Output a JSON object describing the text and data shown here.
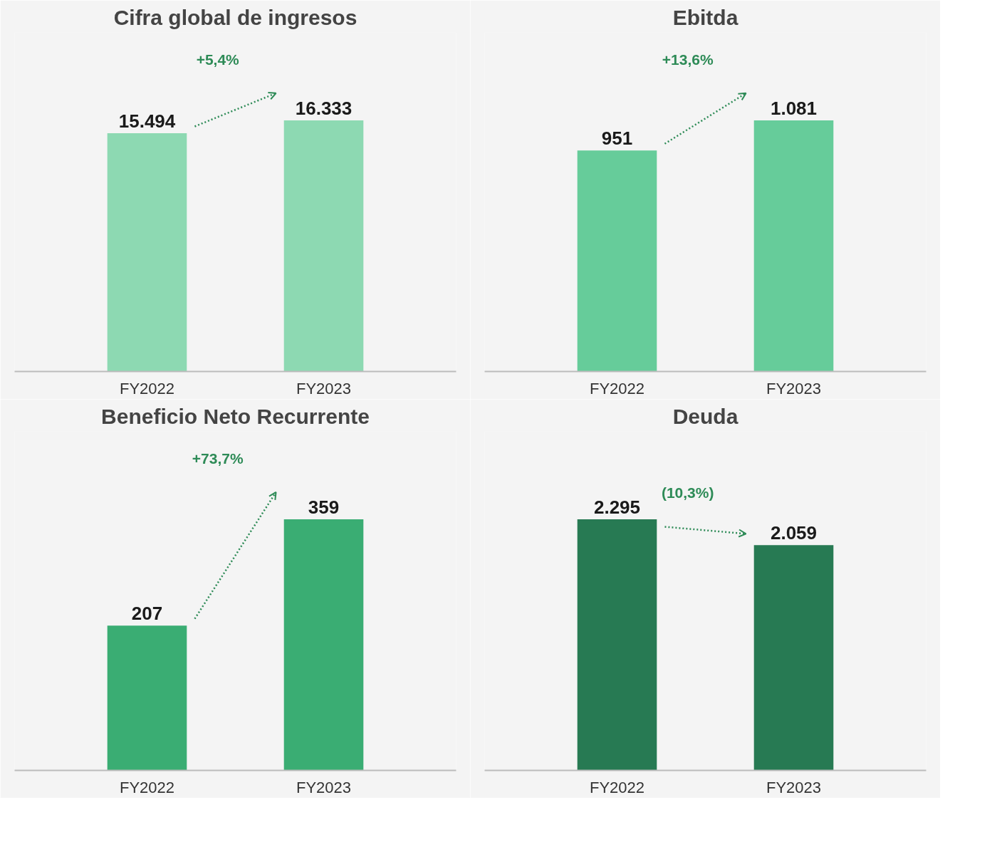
{
  "chart_data": [
    {
      "type": "bar",
      "title": "Cifra global de ingresos",
      "categories": [
        "FY2022",
        "FY2023"
      ],
      "values": [
        15494,
        16333
      ],
      "value_labels": [
        "15.494",
        "16.333"
      ],
      "color": "#8dd9b2",
      "annotations": [
        "+5,4%"
      ]
    },
    {
      "type": "bar",
      "title": "Ebitda",
      "categories": [
        "FY2022",
        "FY2023"
      ],
      "values": [
        951,
        1081
      ],
      "value_labels": [
        "951",
        "1.081"
      ],
      "color": "#66cc9a",
      "annotations": [
        "+13,6%"
      ]
    },
    {
      "type": "bar",
      "title": "Beneficio Neto Recurrente",
      "categories": [
        "FY2022",
        "FY2023"
      ],
      "values": [
        207,
        359
      ],
      "value_labels": [
        "207",
        "359"
      ],
      "color": "#3aad73",
      "annotations": [
        "+73,7%"
      ]
    },
    {
      "type": "bar",
      "title": "Deuda",
      "categories": [
        "FY2022",
        "FY2023"
      ],
      "values": [
        2295,
        2059
      ],
      "value_labels": [
        "2.295",
        "2.059"
      ],
      "color": "#277a53",
      "annotations": [
        "(10,3%)"
      ]
    }
  ]
}
